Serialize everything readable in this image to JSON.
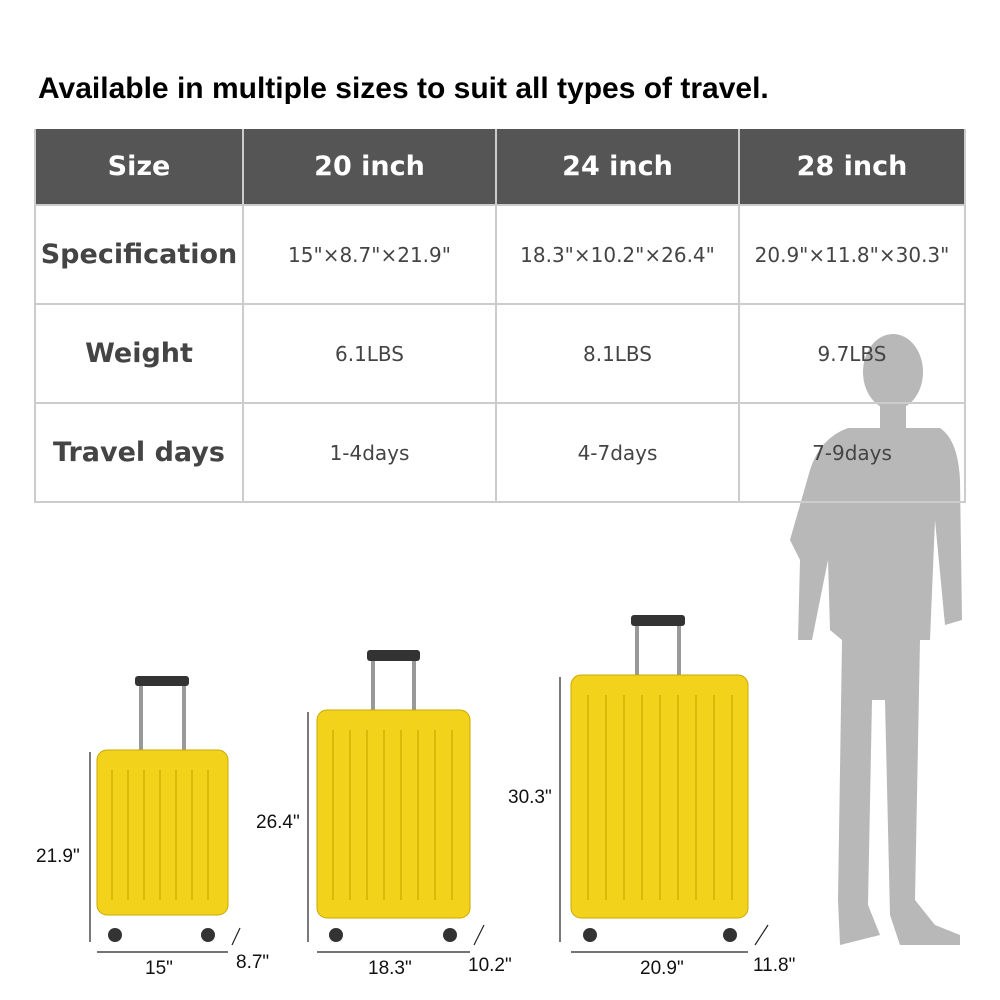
{
  "title": "Available in multiple sizes to suit all types of travel.",
  "table": {
    "headers": [
      "Size",
      "20 inch",
      "24 inch",
      "28 inch"
    ],
    "rows": [
      {
        "label": "Specification",
        "values": [
          "15\"×8.7\"×21.9\"",
          "18.3\"×10.2\"×26.4\"",
          "20.9\"×11.8\"×30.3\""
        ]
      },
      {
        "label": "Weight",
        "values": [
          "6.1LBS",
          "8.1LBS",
          "9.7LBS"
        ]
      },
      {
        "label": "Travel days",
        "values": [
          "1-4days",
          "4-7days",
          "7-9days"
        ]
      }
    ]
  },
  "suitcases": [
    {
      "height": "21.9\"",
      "width": "15\"",
      "depth": "8.7\""
    },
    {
      "height": "26.4\"",
      "width": "18.3\"",
      "depth": "10.2\""
    },
    {
      "height": "30.3\"",
      "width": "20.9\"",
      "depth": "11.8\""
    }
  ],
  "colors": {
    "header_bg": "#555555",
    "suitcase": "#f2d21b",
    "silhouette": "#b5b5b5"
  }
}
